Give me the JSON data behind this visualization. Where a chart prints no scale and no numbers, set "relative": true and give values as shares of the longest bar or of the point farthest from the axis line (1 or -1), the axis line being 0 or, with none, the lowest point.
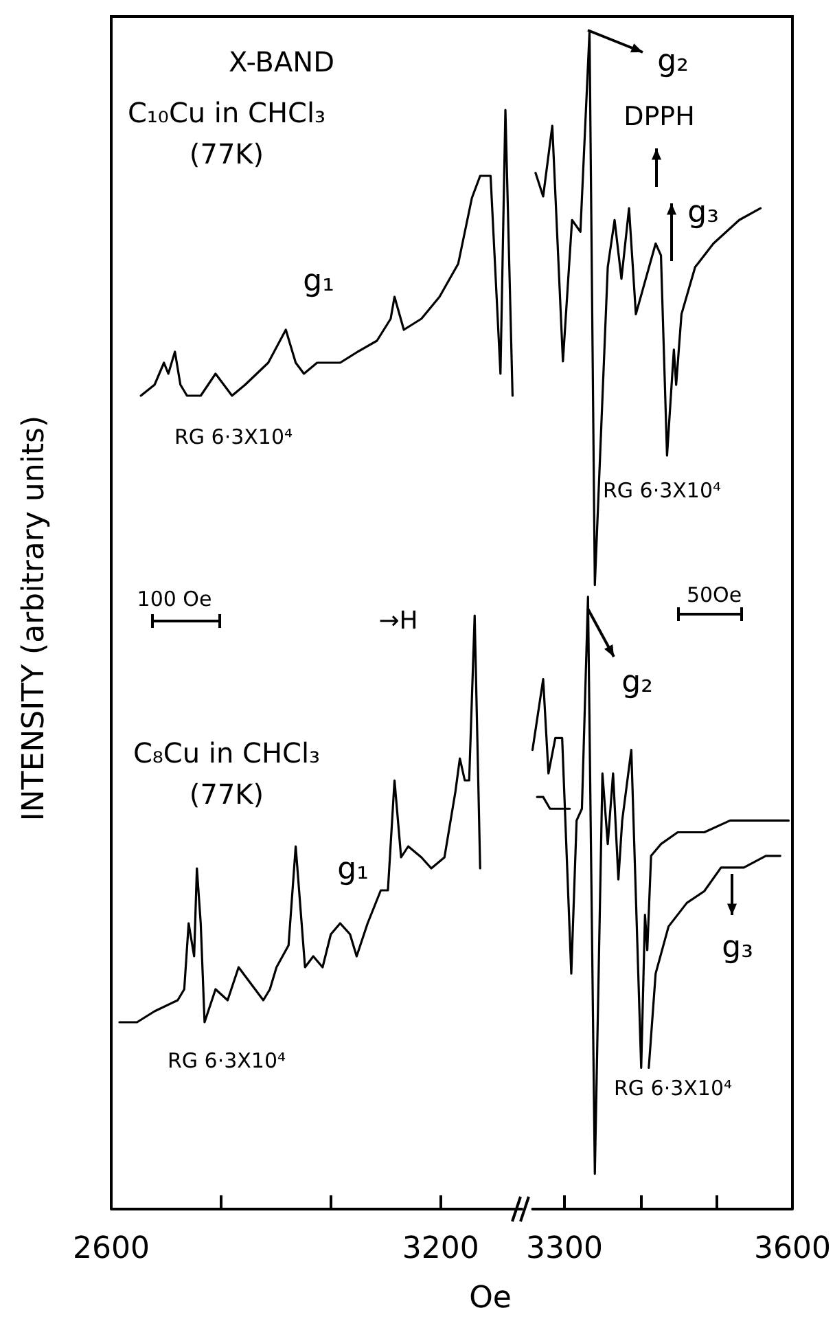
{
  "chart_data": [
    {
      "type": "line",
      "relative": true,
      "xlim": [
        2600,
        3348
      ],
      "xticks": [
        2600,
        {
          "value": 2800,
          "label": null
        },
        {
          "value": 3000,
          "label": null
        },
        3200
      ],
      "xlabel": "Oe",
      "ylabel": "INTENSITY (arbitrary units)",
      "tick_labels": "x",
      "marker": "none",
      "line_style": "solid",
      "annotations": [
        "X-BAND",
        "C₁₀Cu in CHCl₃\n(77K)",
        "g₁",
        "RG 6·3X10⁴",
        "100 Oe",
        "→H",
        "C₈Cu in CHCl₃\n(77K)",
        "g₁",
        "RG 6·3X10⁴"
      ],
      "series": [
        {
          "color": "#000000",
          "x": [
            2654,
            2679,
            2696,
            2704,
            2716,
            2726,
            2738,
            2763,
            2790,
            2820,
            2844,
            2886,
            2918,
            2936,
            2951,
            2975,
            2993,
            3017,
            3049,
            3084,
            3109,
            3116,
            3133,
            3165,
            3198,
            3232,
            3257,
            3272,
            3291,
            3309,
            3318,
            3331
          ],
          "values": [
            0.74,
            0.75,
            0.77,
            0.76,
            0.78,
            0.75,
            0.74,
            0.74,
            0.76,
            0.74,
            0.75,
            0.77,
            0.8,
            0.77,
            0.76,
            0.77,
            0.77,
            0.77,
            0.78,
            0.79,
            0.81,
            0.83,
            0.8,
            0.81,
            0.83,
            0.86,
            0.92,
            0.94,
            0.94,
            0.76,
            1,
            0.74
          ]
        },
        {
          "color": "#000000",
          "x": [
            2615,
            2647,
            2679,
            2721,
            2733,
            2741,
            2751,
            2756,
            2763,
            2770,
            2790,
            2812,
            2832,
            2862,
            2877,
            2889,
            2901,
            2923,
            2936,
            2953,
            2968,
            2985,
            3000,
            3017,
            3035,
            3047,
            3067,
            3091,
            3104,
            3116,
            3128,
            3141,
            3165,
            3183,
            3207,
            3227,
            3235,
            3244,
            3252,
            3262,
            3272
          ],
          "values": [
            0.17,
            0.17,
            0.18,
            0.19,
            0.2,
            0.26,
            0.23,
            0.31,
            0.26,
            0.17,
            0.2,
            0.19,
            0.22,
            0.2,
            0.19,
            0.2,
            0.22,
            0.24,
            0.33,
            0.22,
            0.23,
            0.22,
            0.25,
            0.26,
            0.25,
            0.23,
            0.26,
            0.29,
            0.29,
            0.39,
            0.32,
            0.33,
            0.32,
            0.31,
            0.32,
            0.38,
            0.41,
            0.39,
            0.39,
            0.54,
            0.31
          ]
        }
      ]
    },
    {
      "type": "line",
      "relative": true,
      "xlim": [
        3258,
        3600
      ],
      "xticks": [
        3300,
        {
          "value": 3400,
          "label": null
        },
        {
          "value": 3500,
          "label": null
        },
        3600
      ],
      "tick_labels": "x",
      "marker": "none",
      "line_style": "solid",
      "annotations": [
        "g₂",
        "DPPH",
        "g₃",
        "RG 6·3X10⁴",
        "50Oe",
        "g₂",
        "g₃",
        "RG 6·3X10⁴"
      ],
      "series": [
        {
          "color": "#000000",
          "x": [
            3262,
            3272,
            3284,
            3298,
            3310,
            3321,
            3333,
            3340,
            3357,
            3366,
            3375,
            3385,
            3394,
            3420,
            3427,
            3435,
            3444,
            3447,
            3454,
            3472,
            3496,
            3530,
            3558
          ],
          "values": [
            0.88,
            0.86,
            0.92,
            0.72,
            0.84,
            0.83,
            1,
            0.53,
            0.8,
            0.84,
            0.79,
            0.85,
            0.76,
            0.82,
            0.81,
            0.64,
            0.73,
            0.7,
            0.76,
            0.8,
            0.82,
            0.84,
            0.85
          ]
        },
        {
          "color": "#000000",
          "x": [
            3258,
            3272,
            3279,
            3288,
            3297,
            3309,
            3316,
            3323,
            3331,
            3340,
            3350,
            3357,
            3364,
            3371,
            3376,
            3388,
            3401,
            3406,
            3409,
            3414,
            3427,
            3449,
            3484,
            3518,
            3565,
            3595
          ],
          "values": [
            0.39,
            0.45,
            0.37,
            0.4,
            0.4,
            0.2,
            0.33,
            0.34,
            0.52,
            0.03,
            0.37,
            0.31,
            0.37,
            0.28,
            0.33,
            0.39,
            0.12,
            0.25,
            0.22,
            0.3,
            0.31,
            0.32,
            0.32,
            0.33,
            0.33,
            0.33
          ]
        },
        {
          "color": "#000000",
          "x": [
            3264,
            3272,
            3281,
            3293,
            3307,
            null,
            3411,
            3420,
            3437,
            3461,
            3484,
            3506,
            3524,
            3536,
            3565,
            3584
          ],
          "values": [
            0.35,
            0.35,
            0.34,
            0.34,
            0.34,
            null,
            0.12,
            0.2,
            0.24,
            0.26,
            0.27,
            0.29,
            0.29,
            0.29,
            0.3,
            0.3
          ]
        }
      ]
    }
  ]
}
